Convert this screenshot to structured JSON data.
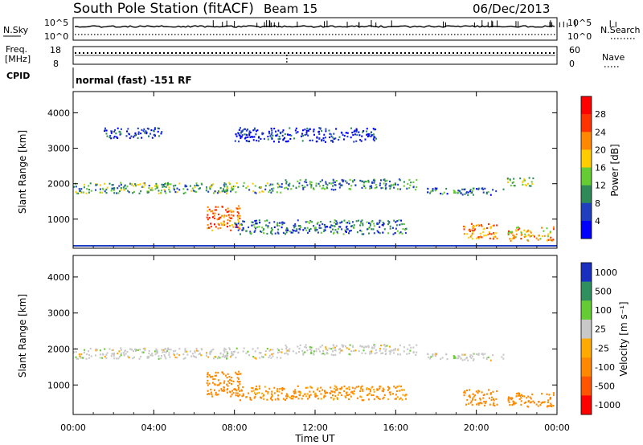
{
  "header": {
    "station": "South Pole Station (fitACF)",
    "beam": "Beam 15",
    "date": "06/Dec/2013"
  },
  "params": {
    "nsky_label": "N.Sky",
    "nsky_tick_top": "10^5",
    "nsky_tick_bottom": "10^0",
    "nsearch_label": "N.Search",
    "nsearch_tick_top": "10^5",
    "nsearch_tick_bottom": "10^0",
    "freq_label_1": "Freq.",
    "freq_label_2": "[MHz]",
    "freq_tick_top": "18",
    "freq_tick_bottom": "8",
    "nave_label": "Nave",
    "nave_tick_top": "60",
    "nave_tick_bottom": "0",
    "cpid_label": "CPID",
    "cpid_text": "normal (fast) -151 RF"
  },
  "chart_data": [
    {
      "type": "heatmap",
      "title": "Power",
      "xlabel": "",
      "ylabel": "Slant Range [km]",
      "ylim": [
        180,
        4600
      ],
      "yticks": [
        "1000",
        "2000",
        "3000",
        "4000"
      ],
      "yticks_values": [
        1000,
        2000,
        3000,
        4000
      ],
      "x_range_hours": [
        0,
        24
      ],
      "colorbar": {
        "label": "Power [dB]",
        "ticks": [
          "4",
          "8",
          "12",
          "16",
          "20",
          "24",
          "28"
        ],
        "colors": [
          "#0000ff",
          "#1f3fbf",
          "#2e8b57",
          "#66cc33",
          "#ffcc00",
          "#ff8800",
          "#ff3300",
          "#ff0000"
        ]
      },
      "echo_regions": [
        {
          "t0": 0.0,
          "t1": 10.5,
          "r0": 1750,
          "r1": 2050,
          "value": 12
        },
        {
          "t0": 10.5,
          "t1": 17.0,
          "r0": 1850,
          "r1": 2150,
          "value": 10
        },
        {
          "t0": 17.5,
          "t1": 21.5,
          "r0": 1700,
          "r1": 1900,
          "value": 8
        },
        {
          "t0": 21.5,
          "t1": 22.8,
          "r0": 1950,
          "r1": 2200,
          "value": 14
        },
        {
          "t0": 6.6,
          "t1": 8.3,
          "r0": 700,
          "r1": 1400,
          "value": 24
        },
        {
          "t0": 8.0,
          "t1": 16.5,
          "r0": 600,
          "r1": 1000,
          "value": 8
        },
        {
          "t0": 19.3,
          "t1": 21.0,
          "r0": 450,
          "r1": 900,
          "value": 22
        },
        {
          "t0": 21.5,
          "t1": 23.8,
          "r0": 400,
          "r1": 800,
          "value": 20
        },
        {
          "t0": 1.5,
          "t1": 4.5,
          "r0": 3300,
          "r1": 3600,
          "value": 4
        },
        {
          "t0": 8.0,
          "t1": 15.0,
          "r0": 3200,
          "r1": 3600,
          "value": 4
        }
      ]
    },
    {
      "type": "heatmap",
      "title": "Velocity",
      "xlabel": "Time UT",
      "ylabel": "Slant Range [km]",
      "ylim": [
        180,
        4600
      ],
      "yticks": [
        "1000",
        "2000",
        "3000",
        "4000"
      ],
      "yticks_values": [
        1000,
        2000,
        3000,
        4000
      ],
      "xticks": [
        "00:00",
        "04:00",
        "08:00",
        "12:00",
        "16:00",
        "20:00",
        "00:00"
      ],
      "xticks_hours": [
        0,
        4,
        8,
        12,
        16,
        20,
        24
      ],
      "colorbar": {
        "label": "Velocity [m s⁻¹]",
        "ticks": [
          "1000",
          "500",
          "100",
          "25",
          "-25",
          "-100",
          "-500",
          "-1000"
        ],
        "colors": [
          "#1a2fbf",
          "#2f8f5f",
          "#66cc33",
          "#c8c8c8",
          "#ffaa00",
          "#ff8800",
          "#ff5500",
          "#ff0000"
        ]
      },
      "echo_regions": [
        {
          "t0": 0.0,
          "t1": 10.5,
          "r0": 1750,
          "r1": 2050,
          "value": 0
        },
        {
          "t0": 10.5,
          "t1": 17.0,
          "r0": 1850,
          "r1": 2150,
          "value": 0
        },
        {
          "t0": 17.5,
          "t1": 21.5,
          "r0": 1700,
          "r1": 1900,
          "value": 0
        },
        {
          "t0": 6.6,
          "t1": 8.3,
          "r0": 700,
          "r1": 1400,
          "value": -150
        },
        {
          "t0": 8.0,
          "t1": 16.5,
          "r0": 600,
          "r1": 1000,
          "value": -120
        },
        {
          "t0": 19.3,
          "t1": 21.0,
          "r0": 450,
          "r1": 900,
          "value": -200
        },
        {
          "t0": 21.5,
          "t1": 23.8,
          "r0": 400,
          "r1": 800,
          "value": -150
        }
      ]
    }
  ]
}
